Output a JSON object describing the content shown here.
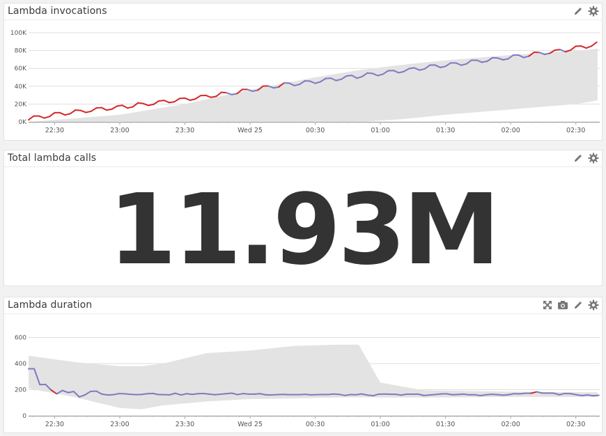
{
  "widgets": {
    "invocations": {
      "title": "Lambda invocations"
    },
    "total": {
      "title": "Total lambda calls",
      "value": "11.93M"
    },
    "duration": {
      "title": "Lambda duration"
    }
  },
  "icons": {
    "edit": "pencil-icon",
    "settings": "gear-icon",
    "expand": "expand-icon",
    "snapshot": "camera-icon"
  },
  "colors": {
    "series_line": "#7e7abf",
    "anomaly_line": "#d62728",
    "band": "#e3e3e3",
    "grid": "#dddddd"
  },
  "chart_data": [
    {
      "type": "line",
      "title": "Lambda invocations",
      "x_ticks": [
        "22:30",
        "23:00",
        "23:30",
        "Wed 25",
        "00:30",
        "01:00",
        "01:30",
        "02:00",
        "02:30"
      ],
      "y_ticks": [
        "0K",
        "20K",
        "40K",
        "60K",
        "80K",
        "100K"
      ],
      "ylim": [
        0,
        100000
      ],
      "grid": true,
      "series": [
        {
          "x": [
            "22:18",
            "22:30",
            "22:40",
            "23:00",
            "23:20",
            "23:40",
            "23:55",
            "00:10",
            "00:30",
            "00:50",
            "01:10",
            "01:30",
            "01:50",
            "02:10",
            "02:30",
            "02:40"
          ],
          "values": [
            3000,
            7500,
            11000,
            16000,
            22000,
            28000,
            33000,
            39000,
            45000,
            51000,
            57000,
            63000,
            69000,
            75000,
            82000,
            87000
          ]
        }
      ],
      "band": {
        "x": [
          "22:18",
          "23:00",
          "23:30",
          "00:00",
          "00:30",
          "00:50",
          "01:10",
          "01:30",
          "02:00",
          "02:30",
          "02:40"
        ],
        "upper": [
          0,
          8000,
          20000,
          36000,
          50000,
          58000,
          64000,
          69000,
          75000,
          80000,
          82000
        ],
        "lower": [
          0,
          0,
          0,
          0,
          0,
          0,
          3000,
          8000,
          14000,
          20000,
          24000
        ]
      }
    },
    {
      "type": "line",
      "title": "Lambda duration",
      "x_ticks": [
        "22:30",
        "23:00",
        "23:30",
        "Wed 25",
        "00:30",
        "01:00",
        "01:30",
        "02:00",
        "02:30"
      ],
      "y_ticks": [
        "0",
        "200",
        "400",
        "600"
      ],
      "ylim": [
        0,
        640
      ],
      "grid": true,
      "series": [
        {
          "x": [
            "22:18",
            "22:22",
            "22:23",
            "22:27",
            "22:31",
            "22:35",
            "22:40",
            "22:50",
            "23:00",
            "23:30",
            "00:00",
            "00:30",
            "01:00",
            "01:30",
            "02:00",
            "02:10",
            "02:30",
            "02:40"
          ],
          "values": [
            360,
            360,
            240,
            215,
            150,
            205,
            160,
            185,
            170,
            165,
            168,
            162,
            160,
            163,
            160,
            180,
            160,
            160
          ]
        }
      ],
      "band": {
        "x": [
          "22:18",
          "22:40",
          "23:00",
          "23:10",
          "23:20",
          "23:40",
          "00:00",
          "00:20",
          "00:40",
          "00:50",
          "01:00",
          "01:20",
          "01:40",
          "02:00",
          "02:20",
          "02:40"
        ],
        "upper": [
          460,
          410,
          380,
          380,
          400,
          480,
          500,
          535,
          545,
          545,
          255,
          195,
          190,
          185,
          182,
          180
        ],
        "lower": [
          210,
          140,
          60,
          50,
          80,
          110,
          128,
          133,
          140,
          142,
          140,
          140,
          142,
          145,
          145,
          145
        ]
      }
    }
  ]
}
